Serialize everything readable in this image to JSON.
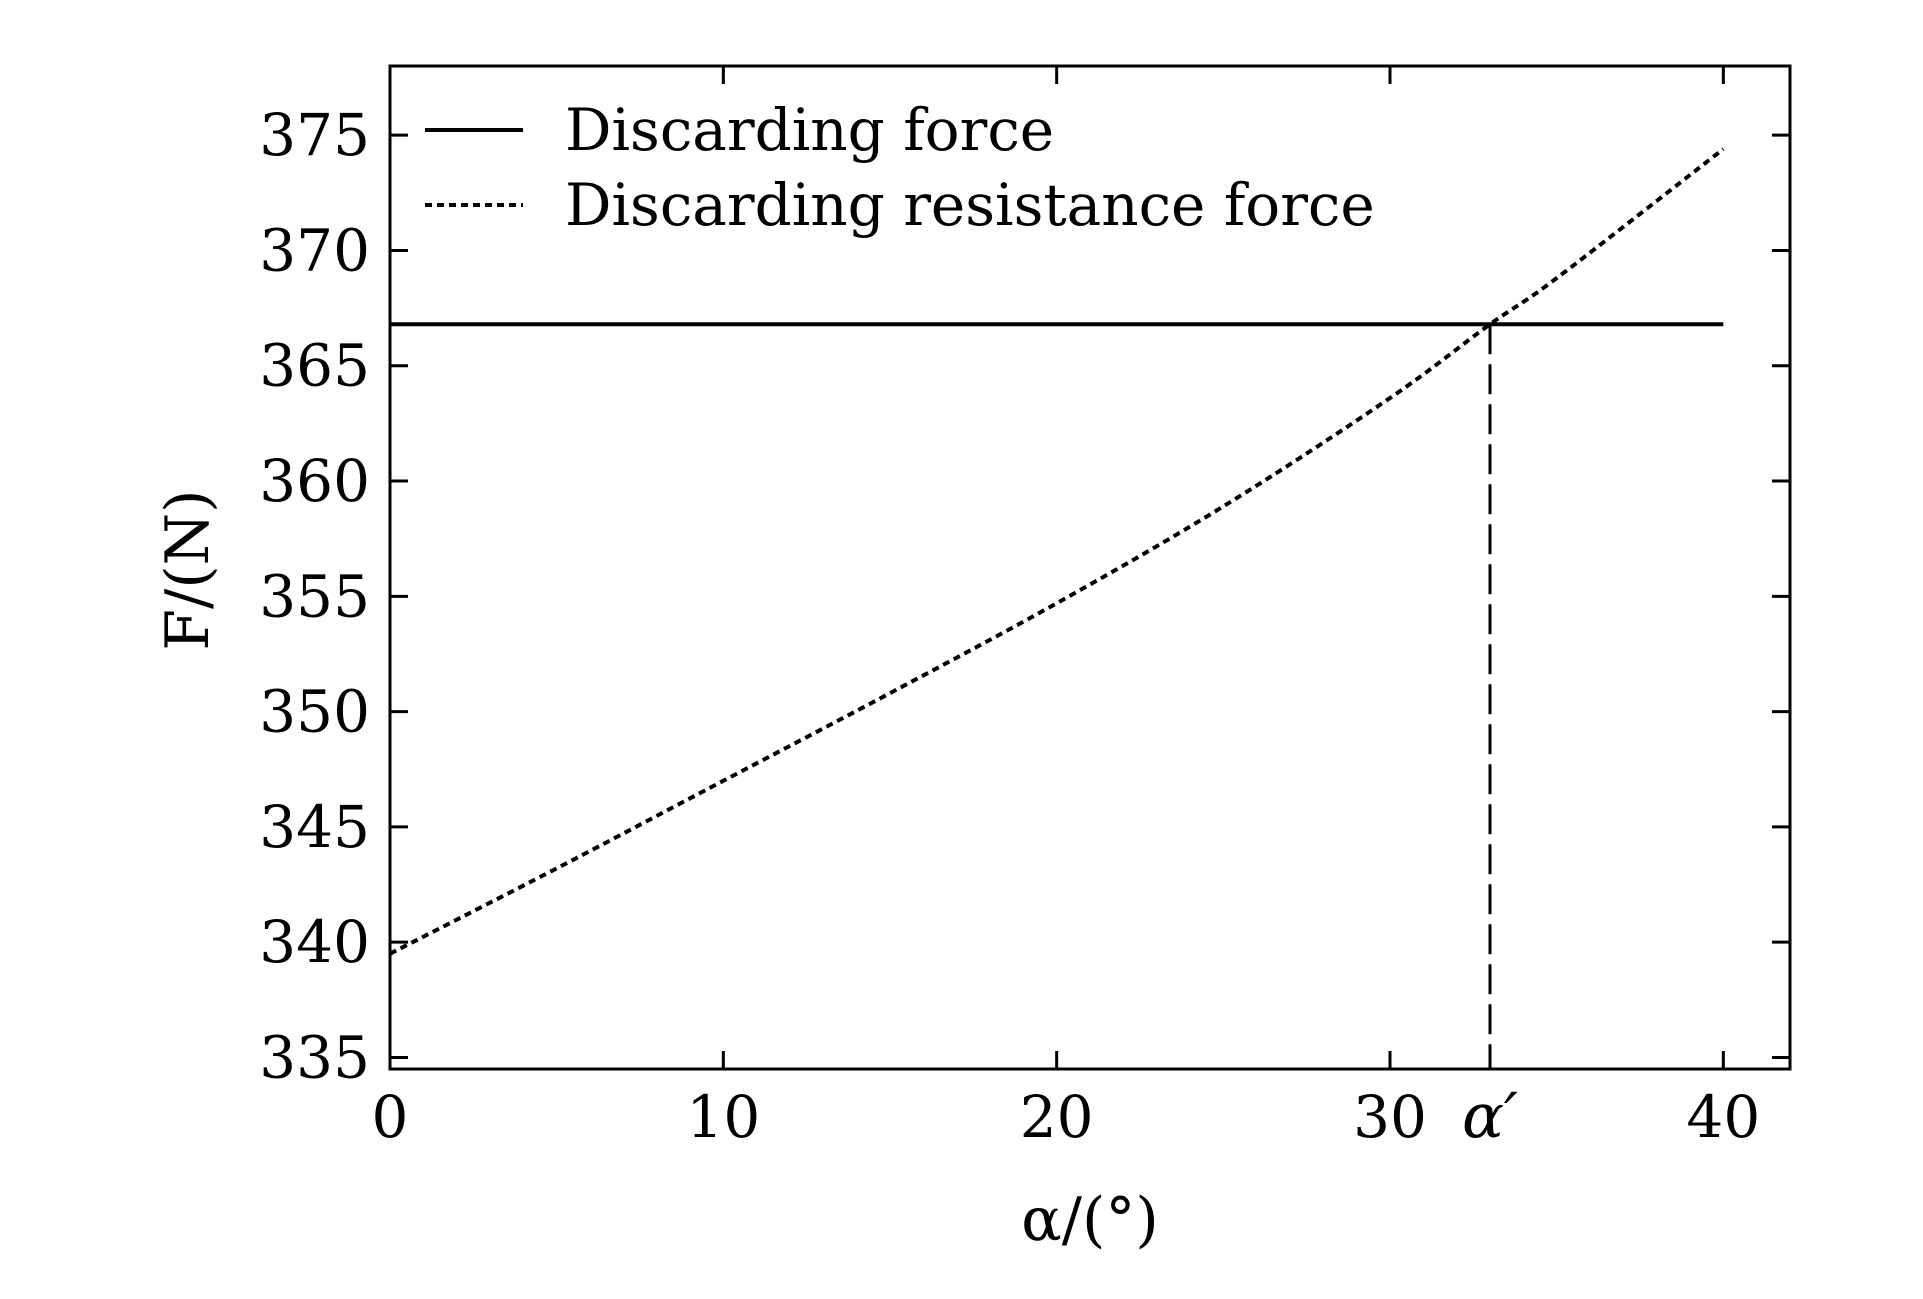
{
  "chart_data": {
    "type": "line",
    "xlabel": "α/(°)",
    "ylabel": "F/(N)",
    "xlim": [
      0,
      42
    ],
    "ylim": [
      334.5,
      378
    ],
    "x_ticks": [
      0,
      10,
      20,
      30,
      40
    ],
    "y_ticks": [
      335,
      340,
      345,
      350,
      355,
      360,
      365,
      370,
      375
    ],
    "legend_position": "top-left",
    "grid": false,
    "series": [
      {
        "name": "Discarding force",
        "style": "solid",
        "color": "#000000",
        "x": [
          0,
          40
        ],
        "y": [
          366.8,
          366.8
        ]
      },
      {
        "name": "Discarding resistance force",
        "style": "dotted",
        "color": "#000000",
        "x": [
          0,
          5,
          10,
          15,
          20,
          25,
          30,
          33,
          35,
          40
        ],
        "y": [
          339.5,
          343.2,
          347.0,
          350.8,
          354.7,
          358.9,
          363.6,
          366.8,
          368.8,
          374.4
        ]
      }
    ],
    "annotations": [
      {
        "text": "α′",
        "x": 33.0,
        "y_from": 334.5,
        "y_to": 366.8,
        "style": "dashed"
      }
    ]
  }
}
